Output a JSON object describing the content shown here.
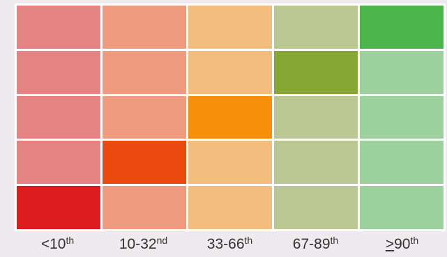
{
  "chart_data": {
    "type": "heatmap",
    "columns": [
      {
        "prefix": "<",
        "base": "10",
        "sup": "th"
      },
      {
        "prefix": "",
        "base": "10-32",
        "sup": "nd"
      },
      {
        "prefix": "",
        "base": "33-66",
        "sup": "th"
      },
      {
        "prefix": "",
        "base": "67-89",
        "sup": "th"
      },
      {
        "prefix": ">",
        "base": "90",
        "sup": "th",
        "prefix_underlined": true
      }
    ],
    "rows": 5,
    "highlighted_cells": [
      {
        "row": 1,
        "col": 5,
        "color": "#4bb54b"
      },
      {
        "row": 2,
        "col": 4,
        "color": "#86a833"
      },
      {
        "row": 3,
        "col": 3,
        "color": "#f78f0a"
      },
      {
        "row": 4,
        "col": 2,
        "color": "#ea4a10"
      },
      {
        "row": 5,
        "col": 1,
        "color": "#dc1c1c"
      }
    ],
    "column_base_colors": [
      "#e58282",
      "#ee9b80",
      "#f3bd7d",
      "#bbc793",
      "#9cd09c"
    ]
  }
}
